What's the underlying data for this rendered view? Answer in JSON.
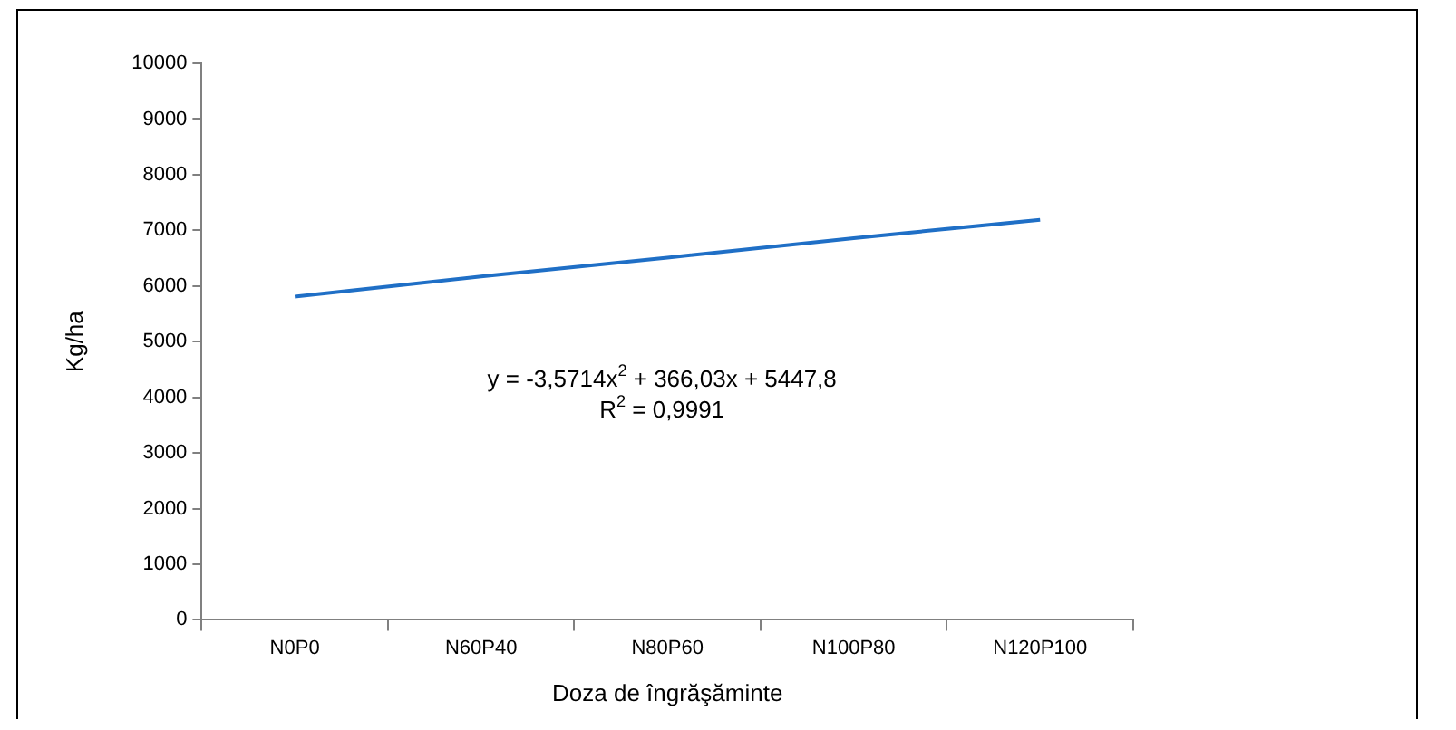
{
  "chart_data": {
    "type": "line",
    "xlabel": "Doza de îngrăşăminte",
    "ylabel": "Kg/ha",
    "categories": [
      "N0P0",
      "N60P40",
      "N80P60",
      "N100P80",
      "N120P100"
    ],
    "series": [
      {
        "color": "#1f6fc6",
        "values": [
          5810,
          6170,
          6510,
          6860,
          7190
        ]
      }
    ],
    "ylim": [
      0,
      10000
    ],
    "yticks": [
      0,
      1000,
      2000,
      3000,
      4000,
      5000,
      6000,
      7000,
      8000,
      9000,
      10000
    ],
    "grid": false,
    "legend": false,
    "marker": "none",
    "line_style": "solid",
    "annotations": [
      "y = -3,5714x$^{2}$ + 366,03x + 5447,8",
      "R$^{2}$ = 0,9991"
    ]
  }
}
